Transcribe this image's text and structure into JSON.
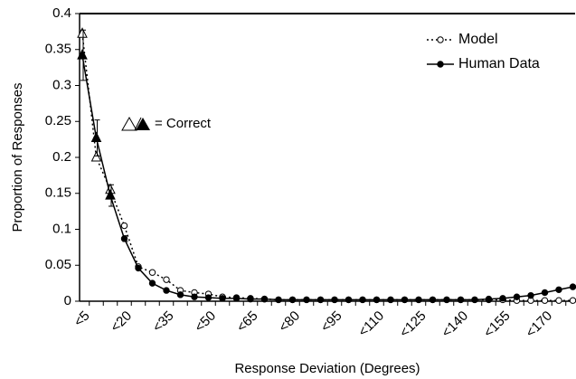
{
  "chart_data": {
    "type": "line",
    "y_label": "Proportion of Responses",
    "x_label": "Response Deviation (Degrees)",
    "annotation": "= Correct",
    "categories": [
      "<5",
      null,
      null,
      "<20",
      null,
      null,
      "<35",
      null,
      null,
      "<50",
      null,
      null,
      "<65",
      null,
      null,
      "<80",
      null,
      null,
      "<95",
      null,
      null,
      "<110",
      null,
      null,
      "<125",
      null,
      null,
      "<140",
      null,
      null,
      "<155",
      null,
      null,
      "<170",
      null,
      null
    ],
    "series": [
      {
        "name": "Model",
        "color": "#000000",
        "style": "dotted",
        "marker": "open",
        "values": [
          0.372,
          0.2,
          0.155,
          0.105,
          0.048,
          0.04,
          0.03,
          0.015,
          0.012,
          0.01,
          0.006,
          0.005,
          0.004,
          0.003,
          0.002,
          0.002,
          0.002,
          0.002,
          0.002,
          0.002,
          0.002,
          0.002,
          0.002,
          0.002,
          0.002,
          0.002,
          0.002,
          0.002,
          0.002,
          0.002,
          0.002,
          0.001,
          0.001,
          0.001,
          0.001,
          0.001
        ]
      },
      {
        "name": "Human Data",
        "color": "#000000",
        "style": "solid",
        "marker": "filled",
        "values": [
          0.342,
          0.227,
          0.147,
          0.087,
          0.046,
          0.025,
          0.015,
          0.009,
          0.006,
          0.005,
          0.004,
          0.004,
          0.003,
          0.003,
          0.002,
          0.002,
          0.002,
          0.002,
          0.002,
          0.002,
          0.002,
          0.002,
          0.002,
          0.002,
          0.002,
          0.002,
          0.002,
          0.002,
          0.002,
          0.003,
          0.004,
          0.006,
          0.008,
          0.012,
          0.016,
          0.02
        ],
        "errors": [
          0.035,
          0.025,
          0.015,
          0.004,
          null,
          null,
          null,
          null,
          null,
          null,
          null,
          null,
          null,
          null,
          null,
          null,
          null,
          null,
          null,
          null,
          null,
          null,
          null,
          null,
          null,
          null,
          null,
          null,
          null,
          null,
          null,
          null,
          null,
          null,
          null,
          null
        ]
      }
    ],
    "ylim": [
      0,
      0.4
    ],
    "yticks": [
      0,
      0.05,
      0.1,
      0.15,
      0.2,
      0.25,
      0.3,
      0.35,
      0.4
    ],
    "legend": "top-right"
  }
}
